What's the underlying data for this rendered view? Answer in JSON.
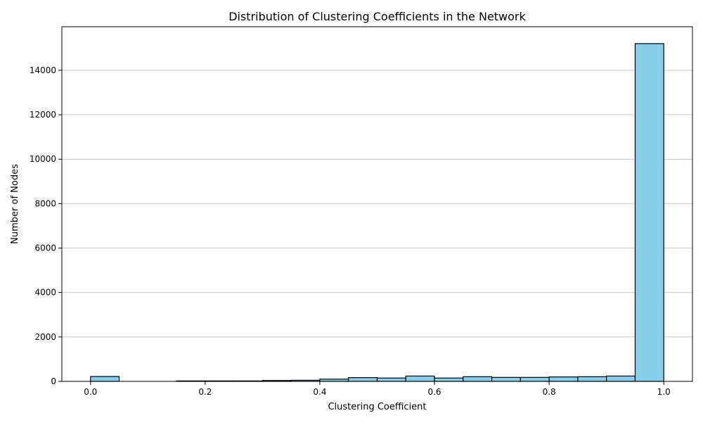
{
  "chart_data": {
    "type": "bar",
    "title": "Distribution of Clustering Coefficients in the Network",
    "xlabel": "Clustering Coefficient",
    "ylabel": "Number of Nodes",
    "bin_edges": [
      0.0,
      0.05,
      0.1,
      0.15,
      0.2,
      0.25,
      0.3,
      0.35,
      0.4,
      0.45,
      0.5,
      0.55,
      0.6,
      0.65,
      0.7,
      0.75,
      0.8,
      0.85,
      0.9,
      0.95,
      1.0
    ],
    "values": [
      220,
      0,
      0,
      20,
      20,
      20,
      40,
      50,
      100,
      170,
      150,
      240,
      150,
      210,
      180,
      180,
      200,
      210,
      240,
      15200
    ],
    "xlim": [
      -0.05,
      1.05
    ],
    "ylim": [
      0,
      15960
    ],
    "xticks": [
      0.0,
      0.2,
      0.4,
      0.6,
      0.8,
      1.0
    ],
    "xtick_labels": [
      "0.0",
      "0.2",
      "0.4",
      "0.6",
      "0.8",
      "1.0"
    ],
    "yticks": [
      0,
      2000,
      4000,
      6000,
      8000,
      10000,
      12000,
      14000
    ],
    "ytick_labels": [
      "0",
      "2000",
      "4000",
      "6000",
      "8000",
      "10000",
      "12000",
      "14000"
    ],
    "grid": "y",
    "legend": "none",
    "colors": {
      "bar_fill": "#87ceeb",
      "bar_edge": "#000000",
      "grid": "#c8c8c8",
      "axis": "#000000"
    }
  }
}
